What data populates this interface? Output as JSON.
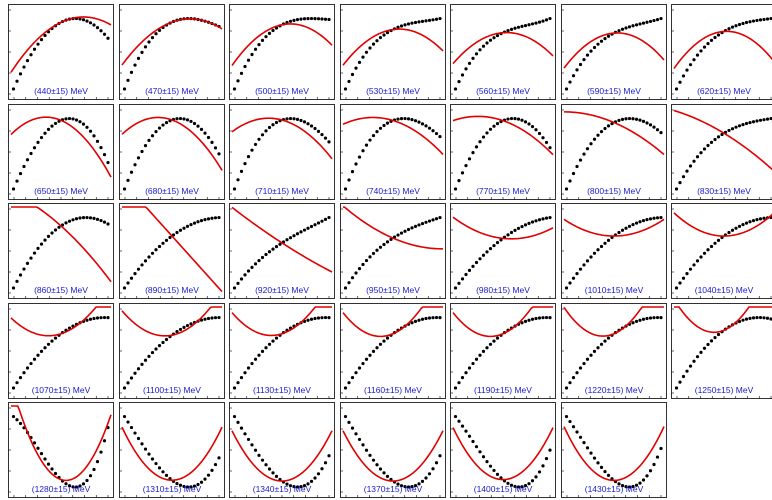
{
  "figure": {
    "panel_labels": [
      "(440±15) MeV",
      "(470±15) MeV",
      "(500±15) MeV",
      "(530±15) MeV",
      "(560±15) MeV",
      "(590±15) MeV",
      "(620±15) MeV",
      "(650±15) MeV",
      "(680±15) MeV",
      "(710±15) MeV",
      "(740±15) MeV",
      "(770±15) MeV",
      "(800±15) MeV",
      "(830±15) MeV",
      "(860±15) MeV",
      "(890±15) MeV",
      "(920±15) MeV",
      "(950±15) MeV",
      "(980±15) MeV",
      "(1010±15) MeV",
      "(1040±15) MeV",
      "(1070±15) MeV",
      "(1100±15) MeV",
      "(1130±15) MeV",
      "(1160±15) MeV",
      "(1190±15) MeV",
      "(1220±15) MeV",
      "(1250±15) MeV",
      "(1280±15) MeV",
      "(1310±15) MeV",
      "(1340±15) MeV",
      "(1370±15) MeV",
      "(1400±15) MeV",
      "(1430±15) MeV"
    ]
  },
  "chart_data": {
    "type": "scatter",
    "title": "",
    "xlabel": "",
    "ylabel": "",
    "grid": false,
    "x": [
      -0.95,
      -0.88,
      -0.81,
      -0.74,
      -0.67,
      -0.6,
      -0.53,
      -0.46,
      -0.39,
      -0.32,
      -0.25,
      -0.18,
      -0.11,
      -0.04,
      0.03,
      0.1,
      0.17,
      0.24,
      0.31,
      0.38,
      0.45,
      0.52,
      0.59,
      0.66,
      0.73,
      0.8,
      0.87,
      0.94
    ],
    "xlim": [
      -1,
      1
    ],
    "panels": [
      {
        "label": "(440±15) MeV",
        "ylim": [
          0,
          11
        ],
        "fit": [
          0.05,
          0.18,
          -0.2
        ],
        "model": [
          0,
          0.2,
          -0.35,
          0,
          0.3
        ]
      },
      {
        "label": "(470±15) MeV",
        "ylim": [
          0,
          11
        ],
        "fit": [
          0.05,
          0.16,
          -0.22
        ],
        "model": [
          0,
          0.2,
          -0.35,
          0.1,
          0.28
        ]
      },
      {
        "label": "(500±15) MeV",
        "ylim": [
          0,
          11
        ],
        "fit": [
          0.08,
          0.1,
          -0.3
        ],
        "model": [
          0,
          0.25,
          -0.32,
          0.12,
          0.22
        ]
      },
      {
        "label": "(530±15) MeV",
        "ylim": [
          0,
          11
        ],
        "fit": [
          0.1,
          0.08,
          -0.32
        ],
        "model": [
          0,
          0.28,
          -0.3,
          0.15,
          0.2
        ]
      },
      {
        "label": "(560±15) MeV",
        "ylim": [
          0,
          11
        ],
        "fit": [
          0.12,
          0.05,
          -0.35
        ],
        "model": [
          0,
          0.3,
          -0.3,
          0.2,
          0.2
        ]
      },
      {
        "label": "(590±15) MeV",
        "ylim": [
          0,
          11
        ],
        "fit": [
          0.1,
          0.05,
          -0.38
        ],
        "model": [
          0,
          0.32,
          -0.28,
          0.15,
          0.2
        ]
      },
      {
        "label": "(620±15) MeV",
        "ylim": [
          0,
          11
        ],
        "fit": [
          0.08,
          0.04,
          -0.38
        ],
        "model": [
          0,
          0.33,
          -0.28,
          0.1,
          0.2
        ]
      },
      {
        "label": "(650±15) MeV",
        "ylim": [
          0,
          5
        ],
        "fit": [
          0.02,
          -0.12,
          -0.2
        ],
        "model": [
          0,
          0.12,
          -0.35,
          -0.05,
          0.4
        ]
      },
      {
        "label": "(680±15) MeV",
        "ylim": [
          0,
          5
        ],
        "fit": [
          0.02,
          -0.1,
          -0.18
        ],
        "model": [
          0,
          0.1,
          -0.32,
          0,
          0.42
        ]
      },
      {
        "label": "(710±15) MeV",
        "ylim": [
          0,
          5
        ],
        "fit": [
          0.05,
          -0.08,
          -0.15
        ],
        "model": [
          0,
          0.1,
          -0.3,
          0.05,
          0.45
        ]
      },
      {
        "label": "(740±15) MeV",
        "ylim": [
          0,
          5
        ],
        "fit": [
          0.03,
          -0.08,
          -0.1
        ],
        "model": [
          0,
          0.1,
          -0.25,
          0.05,
          0.5
        ]
      },
      {
        "label": "(770±15) MeV",
        "ylim": [
          0,
          5
        ],
        "fit": [
          0.03,
          -0.08,
          -0.08
        ],
        "model": [
          0,
          0.1,
          -0.25,
          0,
          0.5
        ]
      },
      {
        "label": "(800±15) MeV",
        "ylim": [
          0,
          5
        ],
        "fit": [
          0.05,
          -0.1,
          -0.05
        ],
        "model": [
          0,
          0.12,
          -0.2,
          0.02,
          0.5
        ]
      },
      {
        "label": "(830±15) MeV",
        "ylim": [
          0,
          5
        ],
        "fit": [
          0.05,
          -0.2,
          -0.05
        ],
        "model": [
          0,
          0.2,
          -0.15,
          0.05,
          0.55
        ]
      },
      {
        "label": "(860±15) MeV",
        "ylim": [
          0,
          3
        ],
        "fit": [
          0,
          -0.2,
          -0.05
        ],
        "model": [
          0,
          0.15,
          -0.15,
          0,
          0.6
        ]
      },
      {
        "label": "(890±15) MeV",
        "ylim": [
          0,
          3
        ],
        "fit": [
          0,
          -0.3,
          0
        ],
        "model": [
          0,
          0.2,
          -0.1,
          0,
          0.65
        ]
      },
      {
        "label": "(920±15) MeV",
        "ylim": [
          0,
          3
        ],
        "fit": [
          0,
          -0.3,
          0.03
        ],
        "model": [
          0,
          0.3,
          -0.1,
          0.05,
          0.6
        ]
      },
      {
        "label": "(950±15) MeV",
        "ylim": [
          0,
          3
        ],
        "fit": [
          0,
          -0.2,
          0.1
        ],
        "model": [
          0,
          0.3,
          -0.15,
          0.05,
          0.5
        ]
      },
      {
        "label": "(980±15) MeV",
        "ylim": [
          0,
          3
        ],
        "fit": [
          0,
          -0.05,
          0.15
        ],
        "model": [
          0,
          0.35,
          -0.15,
          0,
          0.5
        ]
      },
      {
        "label": "(1010±15) MeV",
        "ylim": [
          0,
          3
        ],
        "fit": [
          0,
          0,
          0.18
        ],
        "model": [
          0,
          0.4,
          -0.2,
          0,
          0.4
        ]
      },
      {
        "label": "(1040±15) MeV",
        "ylim": [
          0,
          3
        ],
        "fit": [
          0,
          0,
          0.25
        ],
        "model": [
          0,
          0.4,
          -0.2,
          0,
          0.4
        ]
      },
      {
        "label": "(1070±15) MeV",
        "ylim": [
          0,
          3
        ],
        "fit": [
          0,
          0.15,
          0.3
        ],
        "model": [
          0,
          0.35,
          -0.2,
          0,
          0.4
        ]
      },
      {
        "label": "(1100±15) MeV",
        "ylim": [
          0,
          3
        ],
        "fit": [
          0,
          0.1,
          0.35
        ],
        "model": [
          0,
          0.38,
          -0.2,
          0,
          0.35
        ]
      },
      {
        "label": "(1130±15) MeV",
        "ylim": [
          0,
          3
        ],
        "fit": [
          0,
          0.15,
          0.35
        ],
        "model": [
          0,
          0.35,
          -0.2,
          0,
          0.35
        ]
      },
      {
        "label": "(1160±15) MeV",
        "ylim": [
          0,
          3
        ],
        "fit": [
          0,
          0.2,
          0.4
        ],
        "model": [
          0,
          0.35,
          -0.2,
          0,
          0.35
        ]
      },
      {
        "label": "(1190±15) MeV",
        "ylim": [
          0,
          3
        ],
        "fit": [
          0,
          0.2,
          0.4
        ],
        "model": [
          0,
          0.35,
          -0.2,
          0,
          0.35
        ]
      },
      {
        "label": "(1220±15) MeV",
        "ylim": [
          0,
          3
        ],
        "fit": [
          0,
          0.2,
          0.45
        ],
        "model": [
          0,
          0.35,
          -0.2,
          0,
          0.35
        ]
      },
      {
        "label": "(1250±15) MeV",
        "ylim": [
          0,
          3
        ],
        "fit": [
          0,
          0.2,
          0.5
        ],
        "model": [
          0,
          0.35,
          -0.25,
          0,
          0.35
        ]
      },
      {
        "label": "(1280±15) MeV",
        "ylim": [
          0,
          3
        ],
        "fit": [
          0,
          -0.1,
          0.5
        ],
        "model": [
          0,
          -0.3,
          0.4,
          0.3,
          0.25
        ]
      },
      {
        "label": "(1310±15) MeV",
        "ylim": [
          0,
          3
        ],
        "fit": [
          0,
          0,
          0.55
        ],
        "model": [
          0,
          -0.4,
          0.5,
          0.2,
          0.2
        ]
      },
      {
        "label": "(1340±15) MeV",
        "ylim": [
          0,
          3
        ],
        "fit": [
          0,
          0,
          0.55
        ],
        "model": [
          0,
          -0.4,
          0.55,
          0.2,
          0.2
        ]
      },
      {
        "label": "(1370±15) MeV",
        "ylim": [
          0,
          3
        ],
        "fit": [
          0,
          0,
          0.55
        ],
        "model": [
          0,
          -0.4,
          0.55,
          0.2,
          0.2
        ]
      },
      {
        "label": "(1400±15) MeV",
        "ylim": [
          0,
          3
        ],
        "fit": [
          0,
          0,
          0.55
        ],
        "model": [
          0,
          -0.45,
          0.55,
          0.3,
          0.2
        ]
      },
      {
        "label": "(1430±15) MeV",
        "ylim": [
          0,
          3
        ],
        "fit": [
          0,
          0,
          0.6
        ],
        "model": [
          0,
          -0.45,
          0.6,
          0.3,
          0.2
        ]
      }
    ]
  },
  "colors": {
    "fit": "#e00000",
    "points": "#000000",
    "label": "#1a1acc"
  }
}
